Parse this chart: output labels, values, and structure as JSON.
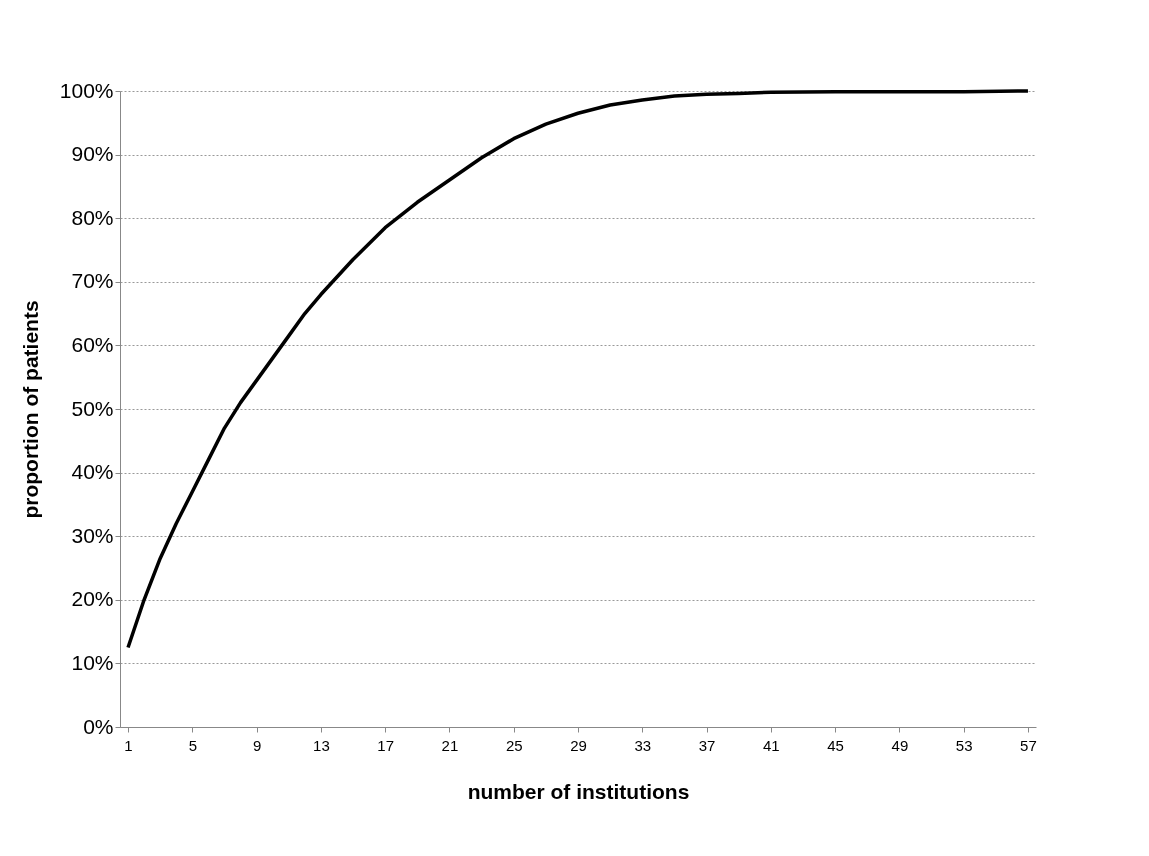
{
  "chart_data": {
    "type": "line",
    "xlabel": "number of institutions",
    "ylabel": "proportion of patients",
    "x": [
      1,
      2,
      3,
      4,
      5,
      6,
      7,
      8,
      9,
      10,
      11,
      12,
      13,
      15,
      17,
      19,
      21,
      23,
      25,
      27,
      29,
      31,
      33,
      35,
      37,
      39,
      41,
      45,
      49,
      53,
      57
    ],
    "series": [
      {
        "color": "#000000",
        "values": [
          12.5,
          20,
          26.5,
          32,
          37,
          42,
          47,
          51,
          54.5,
          58,
          61.5,
          65,
          68,
          73.5,
          78.5,
          82.5,
          86,
          89.5,
          92.5,
          94.8,
          96.5,
          97.8,
          98.6,
          99.2,
          99.5,
          99.6,
          99.8,
          99.9,
          99.9,
          99.9,
          100
        ]
      }
    ],
    "xlim": [
      0.5,
      57.5
    ],
    "xticks": [
      1,
      5,
      9,
      13,
      17,
      21,
      25,
      29,
      33,
      37,
      41,
      45,
      49,
      53,
      57
    ],
    "ylim": [
      0,
      100
    ],
    "yticks": [
      {
        "value": 0,
        "label": "0%"
      },
      {
        "value": 10,
        "label": "10%"
      },
      {
        "value": 20,
        "label": "20%"
      },
      {
        "value": 30,
        "label": "30%"
      },
      {
        "value": 40,
        "label": "40%"
      },
      {
        "value": 50,
        "label": "50%"
      },
      {
        "value": 60,
        "label": "60%"
      },
      {
        "value": 70,
        "label": "70%"
      },
      {
        "value": 80,
        "label": "80%"
      },
      {
        "value": 90,
        "label": "90%"
      },
      {
        "value": 100,
        "label": "100%"
      }
    ],
    "grid": "y",
    "legend": false,
    "marker": "none",
    "line_style": "solid"
  }
}
